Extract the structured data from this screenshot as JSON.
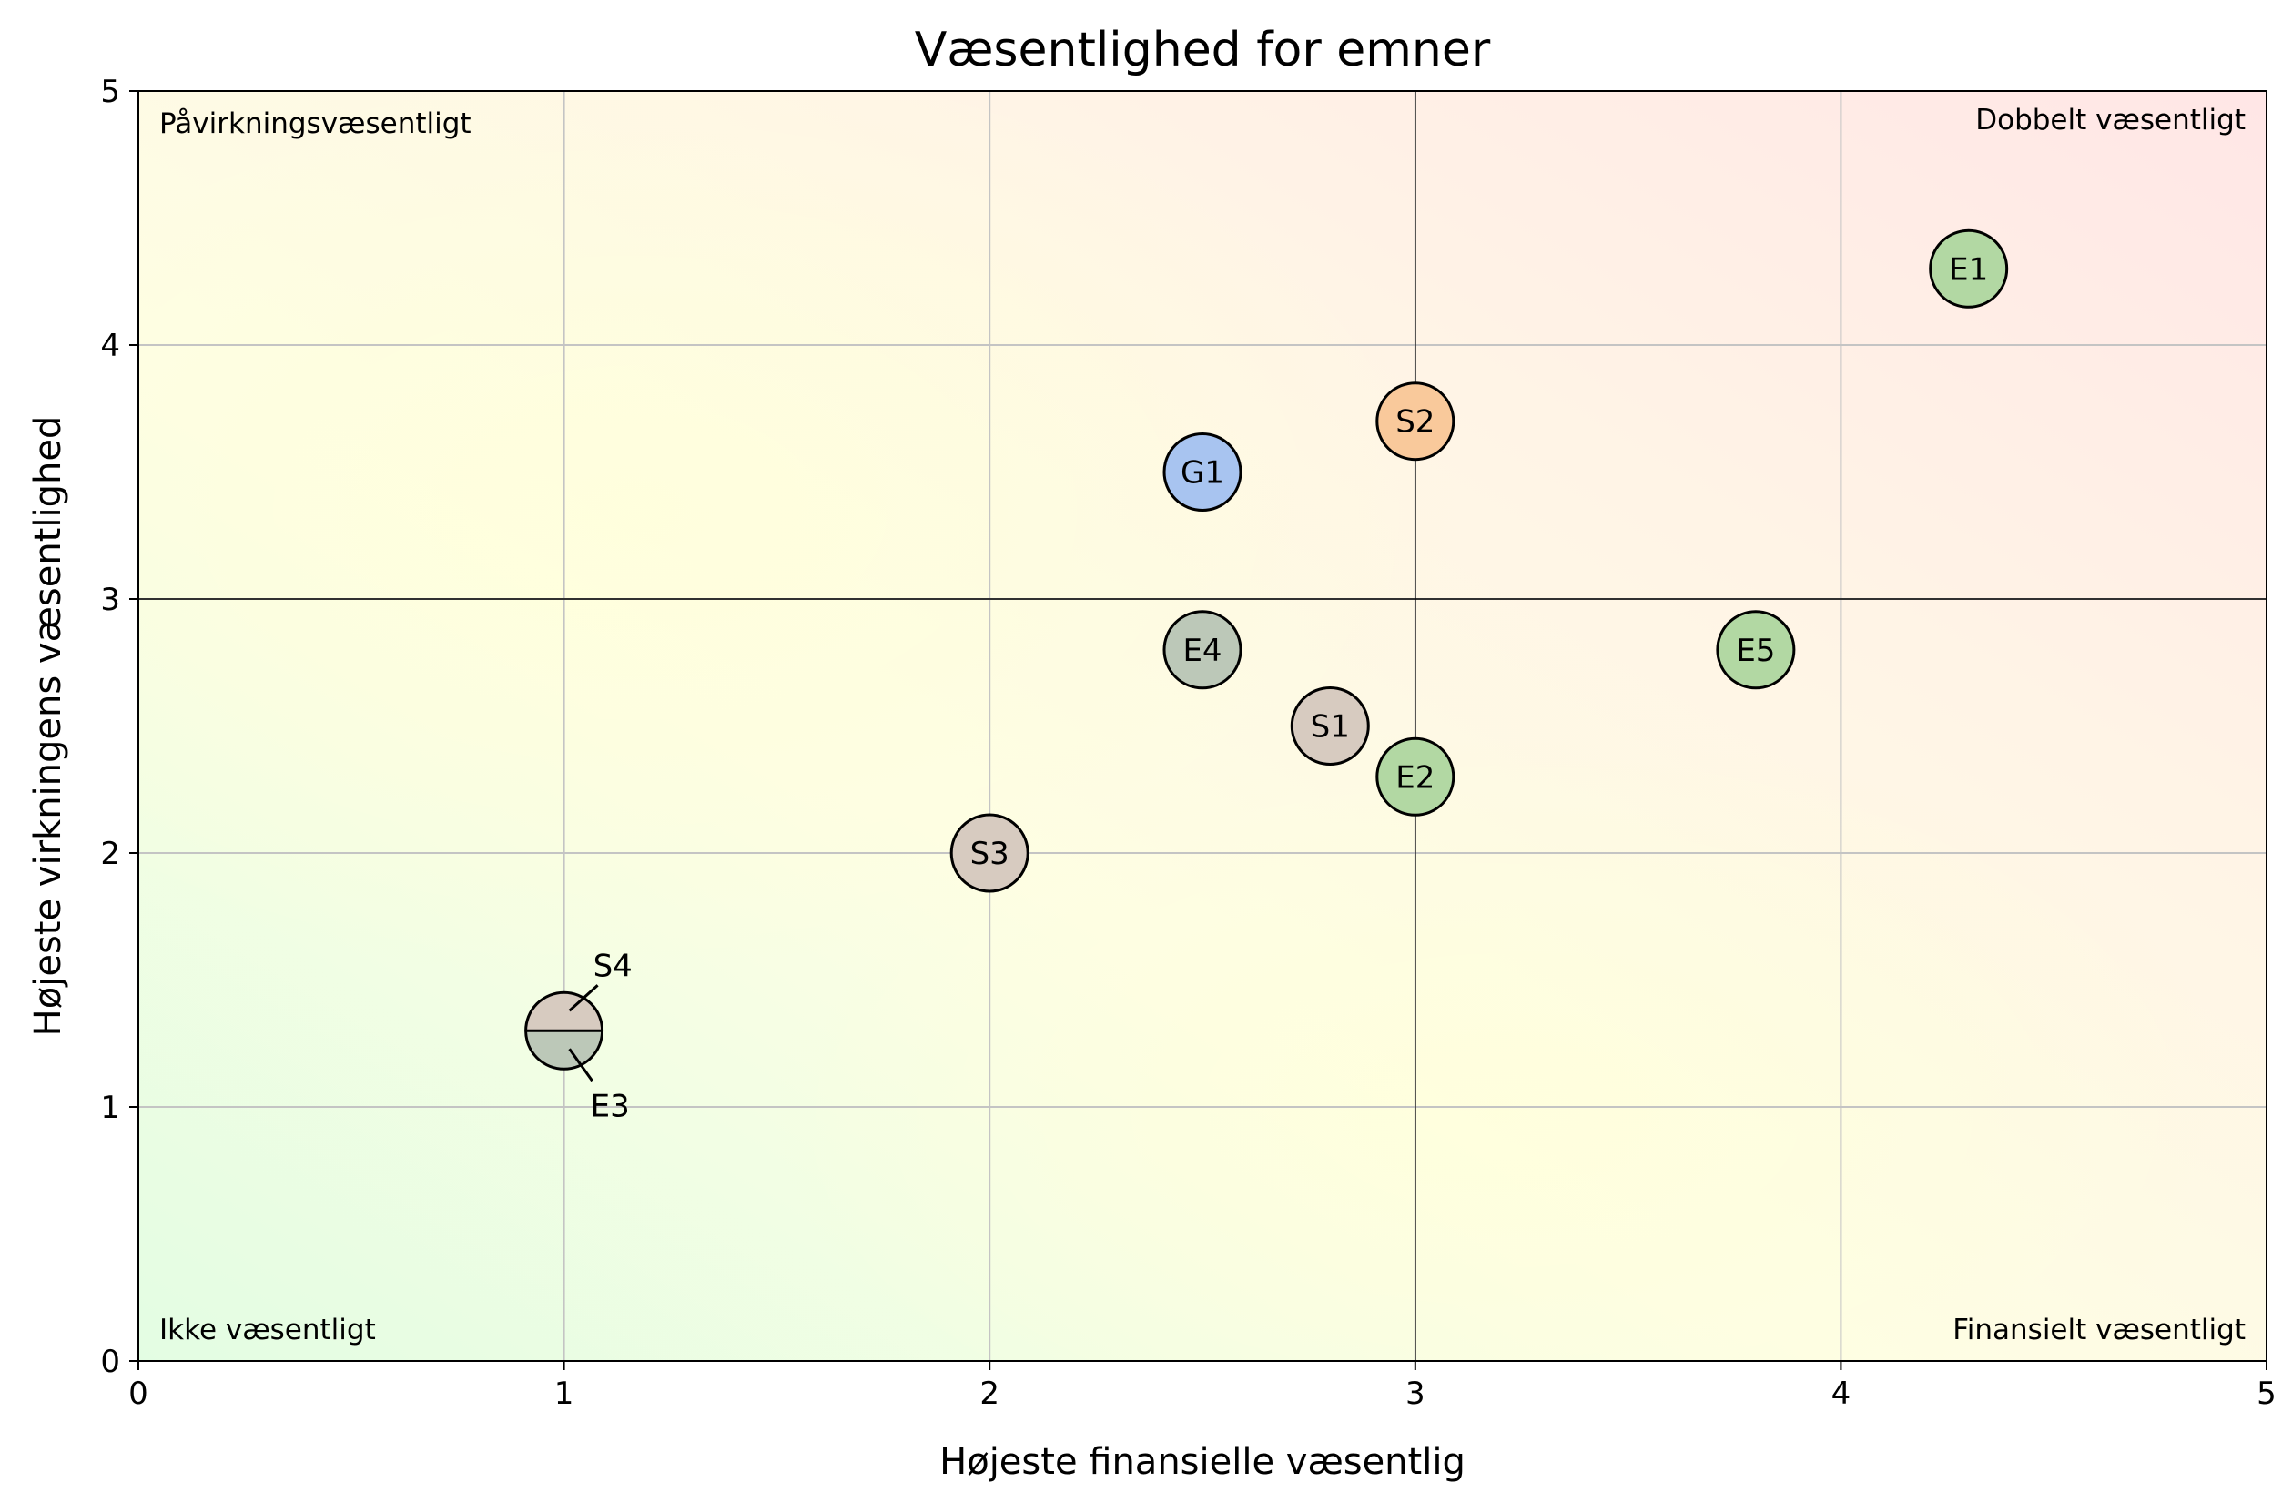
{
  "chart_data": {
    "type": "scatter",
    "title": "Væsentlighed for emner",
    "xlabel": "Højeste finansielle væsentlig",
    "ylabel": "Højeste virkningens væsentlighed",
    "xlim": [
      0,
      5
    ],
    "ylim": [
      0,
      5
    ],
    "xticks": [
      "0",
      "1",
      "2",
      "3",
      "4",
      "5"
    ],
    "yticks": [
      "0",
      "1",
      "2",
      "3",
      "4",
      "5"
    ],
    "grid": true,
    "threshold": {
      "x": 3,
      "y": 3
    },
    "quadrant_labels": {
      "top_left": "Påvirkningsvæsentligt",
      "top_right": "Dobbelt væsentligt",
      "bottom_left": "Ikke væsentligt",
      "bottom_right": "Finansielt væsentligt"
    },
    "points": [
      {
        "label": "E1",
        "x": 4.3,
        "y": 4.3,
        "color": "#b2d8a3"
      },
      {
        "label": "S2",
        "x": 3.0,
        "y": 3.7,
        "color": "#f9c99b"
      },
      {
        "label": "G1",
        "x": 2.5,
        "y": 3.5,
        "color": "#a8c4f0"
      },
      {
        "label": "E4",
        "x": 2.5,
        "y": 2.8,
        "color": "#bcc8b8"
      },
      {
        "label": "E5",
        "x": 3.8,
        "y": 2.8,
        "color": "#b2d8a3"
      },
      {
        "label": "S1",
        "x": 2.8,
        "y": 2.5,
        "color": "#d7cbc0"
      },
      {
        "label": "E2",
        "x": 3.0,
        "y": 2.3,
        "color": "#b2d8a3"
      },
      {
        "label": "S3",
        "x": 2.0,
        "y": 2.0,
        "color": "#d7cbc0"
      }
    ],
    "shared_points": [
      {
        "x": 1.0,
        "y": 1.3,
        "top": {
          "label": "S4",
          "color": "#d7cbc0"
        },
        "bottom": {
          "label": "E3",
          "color": "#bcc8b8"
        }
      }
    ]
  }
}
